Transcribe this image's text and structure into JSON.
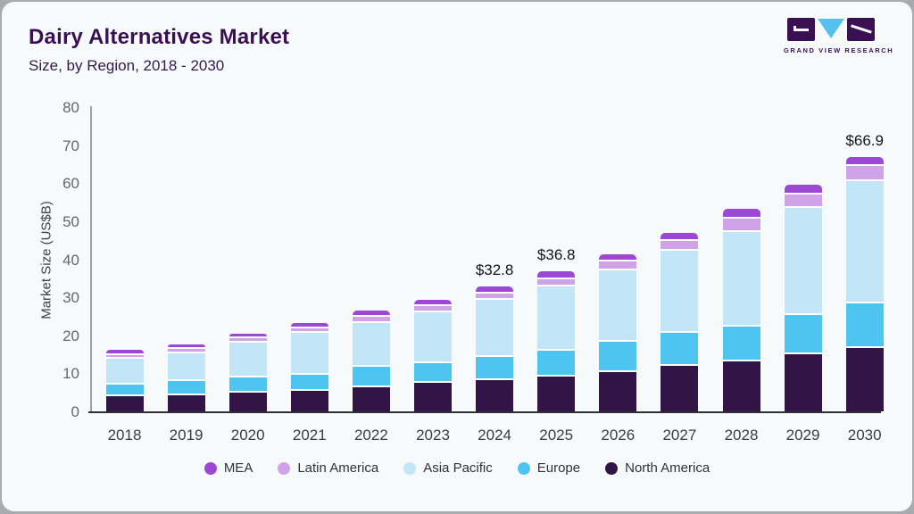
{
  "header": {
    "title": "Dairy Alternatives Market",
    "subtitle": "Size, by Region, 2018 - 2030"
  },
  "logo": {
    "text": "GRAND VIEW RESEARCH",
    "brand_dark": "#3b1053",
    "brand_blue": "#56c0ee"
  },
  "chart_data": {
    "type": "bar",
    "stacked": true,
    "title": "Dairy Alternatives Market Size, by Region, 2018 - 2030",
    "xlabel": "",
    "ylabel": "Market Size (US$B)",
    "ylim": [
      0,
      80
    ],
    "yticks": [
      0,
      10,
      20,
      30,
      40,
      50,
      60,
      70,
      80
    ],
    "grid": false,
    "legend_position": "bottom",
    "categories": [
      "2018",
      "2019",
      "2020",
      "2021",
      "2022",
      "2023",
      "2024",
      "2025",
      "2026",
      "2027",
      "2028",
      "2029",
      "2030"
    ],
    "series": [
      {
        "name": "North America",
        "color": "#321446",
        "values": [
          4.4,
          4.8,
          5.3,
          5.9,
          6.8,
          7.9,
          8.6,
          9.7,
          10.7,
          12.4,
          13.6,
          15.4,
          17.1
        ]
      },
      {
        "name": "Europe",
        "color": "#4ec5f0",
        "values": [
          3.1,
          3.7,
          4.1,
          4.3,
          5.3,
          5.3,
          6.1,
          6.6,
          8.0,
          8.6,
          9.2,
          10.3,
          11.7
        ]
      },
      {
        "name": "Asia Pacific",
        "color": "#c2e6f8",
        "values": [
          6.9,
          7.3,
          9.1,
          10.8,
          11.6,
          13.3,
          15.0,
          17.1,
          18.9,
          21.7,
          24.9,
          28.3,
          32.1
        ]
      },
      {
        "name": "Latin America",
        "color": "#d0a3e9",
        "values": [
          0.9,
          1.0,
          1.2,
          1.4,
          1.7,
          1.7,
          1.7,
          1.9,
          2.2,
          2.6,
          3.4,
          3.4,
          4.0
        ]
      },
      {
        "name": "MEA",
        "color": "#9d48d5",
        "values": [
          0.8,
          0.9,
          0.8,
          0.8,
          1.2,
          1.1,
          1.4,
          1.5,
          1.6,
          1.6,
          2.1,
          2.3,
          2.0
        ]
      }
    ],
    "totals": [
      16.1,
      17.7,
      20.5,
      23.2,
      26.6,
      29.3,
      32.8,
      36.8,
      41.4,
      46.9,
      53.2,
      59.7,
      66.9
    ],
    "annotations": [
      {
        "category": "2024",
        "label": "$32.8"
      },
      {
        "category": "2025",
        "label": "$36.8"
      },
      {
        "category": "2030",
        "label": "$66.9"
      }
    ],
    "legend": [
      "MEA",
      "Latin America",
      "Asia Pacific",
      "Europe",
      "North America"
    ]
  }
}
